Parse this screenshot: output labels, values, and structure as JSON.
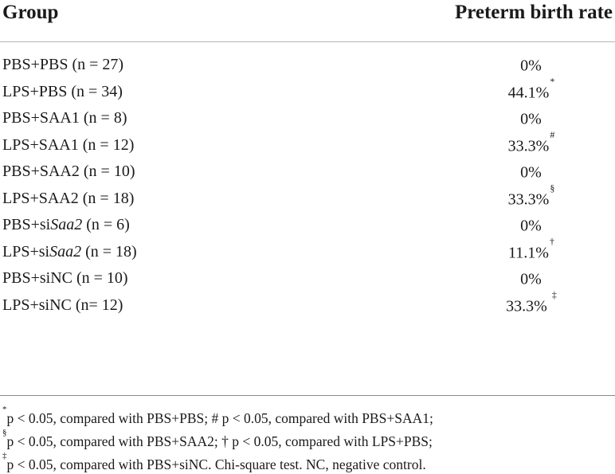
{
  "table": {
    "headers": {
      "group": "Group",
      "rate": "Preterm birth rate"
    },
    "rows": [
      {
        "pre": "PBS+PBS (n = 27)",
        "italic": "",
        "post": "",
        "rate": "0%",
        "mark": ""
      },
      {
        "pre": "LPS+PBS (n = 34)",
        "italic": "",
        "post": "",
        "rate": "44.1%",
        "mark": "*"
      },
      {
        "pre": "PBS+SAA1 (n = 8)",
        "italic": "",
        "post": "",
        "rate": "0%",
        "mark": ""
      },
      {
        "pre": "LPS+SAA1 (n = 12)",
        "italic": "",
        "post": "",
        "rate": "33.3%",
        "mark": "#"
      },
      {
        "pre": "PBS+SAA2 (n = 10)",
        "italic": "",
        "post": "",
        "rate": "0%",
        "mark": ""
      },
      {
        "pre": "LPS+SAA2 (n = 18)",
        "italic": "",
        "post": "",
        "rate": "33.3%",
        "mark": "§"
      },
      {
        "pre": "PBS+si",
        "italic": "Saa2",
        "post": " (n = 6)",
        "rate": "0%",
        "mark": ""
      },
      {
        "pre": "LPS+si",
        "italic": "Saa2",
        "post": " (n = 18)",
        "rate": "11.1%",
        "mark": "†"
      },
      {
        "pre": "PBS+siNC (n = 10)",
        "italic": "",
        "post": "",
        "rate": "0%",
        "mark": ""
      },
      {
        "pre": "LPS+siNC (n= 12)",
        "italic": "",
        "post": "",
        "rate": "33.3%",
        "mark": "‡"
      }
    ]
  },
  "footnotes": {
    "line1": {
      "mark": "*",
      "text": "p < 0.05, compared with PBS+PBS; # p < 0.05, compared with PBS+SAA1;"
    },
    "line2": {
      "mark": "§",
      "text": "p < 0.05, compared with PBS+SAA2; † p < 0.05, compared with LPS+PBS;"
    },
    "line3": {
      "mark": "‡",
      "text": "p < 0.05, compared with PBS+siNC. Chi-square test. NC, negative control."
    }
  }
}
